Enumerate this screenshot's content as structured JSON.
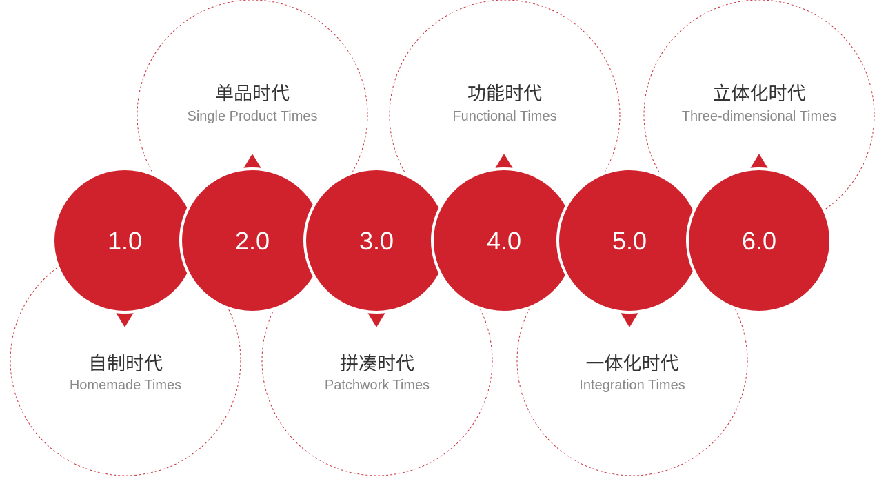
{
  "colors": {
    "accent": "#d0222c",
    "dashed_outline": "#c8323a",
    "number_text": "#ffffff",
    "title_text": "#333333",
    "subtitle_text": "#888888",
    "background": "#ffffff"
  },
  "stages": [
    {
      "number": "1.0",
      "title_cn": "自制时代",
      "title_en": "Homemade Times",
      "label_position": "below"
    },
    {
      "number": "2.0",
      "title_cn": "单品时代",
      "title_en": "Single Product Times",
      "label_position": "above"
    },
    {
      "number": "3.0",
      "title_cn": "拼凑时代",
      "title_en": "Patchwork Times",
      "label_position": "below"
    },
    {
      "number": "4.0",
      "title_cn": "功能时代",
      "title_en": "Functional Times",
      "label_position": "above"
    },
    {
      "number": "5.0",
      "title_cn": "一体化时代",
      "title_en": "Integration Times",
      "label_position": "below"
    },
    {
      "number": "6.0",
      "title_cn": "立体化时代",
      "title_en": "Three-dimensional Times",
      "label_position": "above"
    }
  ]
}
